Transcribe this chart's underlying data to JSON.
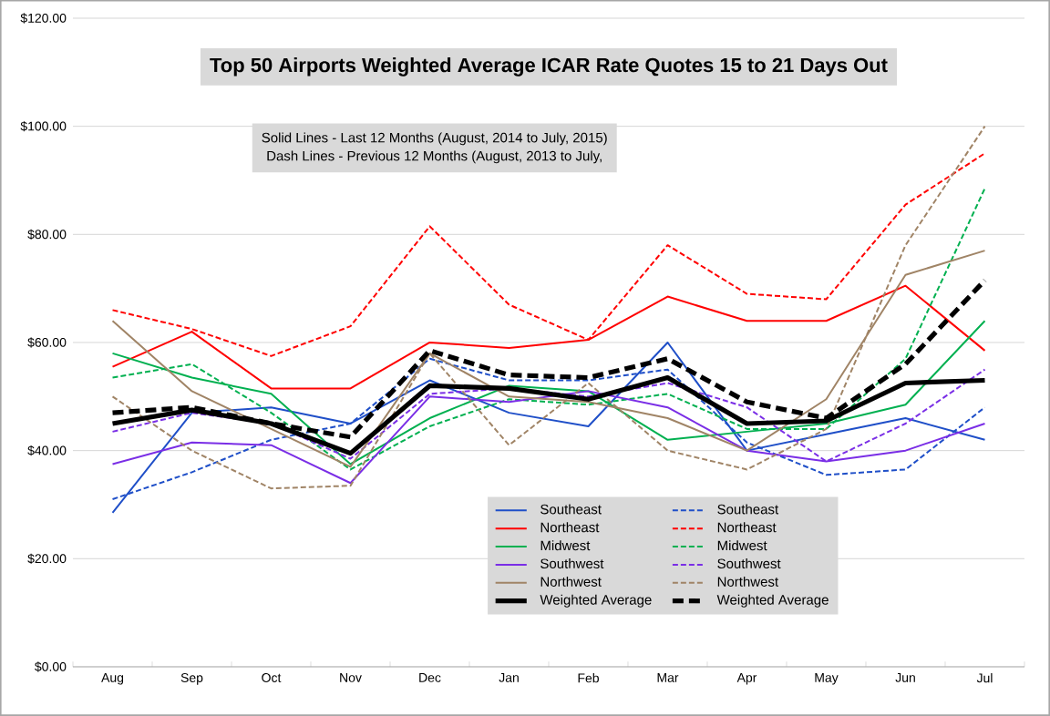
{
  "chart_data": {
    "type": "line",
    "title": "Top 50 Airports Weighted Average ICAR Rate Quotes 15 to 21 Days Out",
    "annotations": [
      "Solid Lines - Last 12 Months  (August, 2014 to July, 2015)",
      "Dash Lines - Previous 12 Months (August, 2013 to July,"
    ],
    "categories": [
      "Aug",
      "Sep",
      "Oct",
      "Nov",
      "Dec",
      "Jan",
      "Feb",
      "Mar",
      "Apr",
      "May",
      "Jun",
      "Jul"
    ],
    "ylim": [
      0,
      120
    ],
    "yticks": [
      {
        "value": 0,
        "label": "$0.00"
      },
      {
        "value": 20,
        "label": "$20.00"
      },
      {
        "value": 40,
        "label": "$40.00"
      },
      {
        "value": 60,
        "label": "$60.00"
      },
      {
        "value": 80,
        "label": "$80.00"
      },
      {
        "value": 100,
        "label": "$100.00"
      },
      {
        "value": 120,
        "label": "$120.00"
      }
    ],
    "grid": "y",
    "legend": "bottom",
    "marker": "none",
    "series": [
      {
        "name": "Southeast",
        "color": "#1f4fc8",
        "line_style": "solid",
        "values": [
          28.5,
          47,
          48,
          45,
          53,
          47,
          44.5,
          60,
          40,
          43,
          46,
          42
        ]
      },
      {
        "name": "Southeast",
        "color": "#1f4fc8",
        "line_style": "dashed",
        "values": [
          31,
          36,
          42,
          45,
          57,
          53,
          53,
          55,
          41.5,
          35.5,
          36.5,
          48
        ]
      },
      {
        "name": "Northeast",
        "color": "#ff0000",
        "line_style": "solid",
        "values": [
          55.5,
          62,
          51.5,
          51.5,
          60,
          59,
          60.5,
          68.5,
          64,
          64,
          70.5,
          58.5
        ]
      },
      {
        "name": "Northeast",
        "color": "#ff0000",
        "line_style": "dashed",
        "values": [
          66,
          62.5,
          57.5,
          63,
          81.5,
          67,
          60.5,
          78,
          69,
          68,
          85.5,
          95
        ]
      },
      {
        "name": "Midwest",
        "color": "#00b050",
        "line_style": "solid",
        "values": [
          58,
          53.5,
          50.5,
          37.5,
          46,
          52,
          51,
          42,
          43.5,
          45,
          48.5,
          64
        ]
      },
      {
        "name": "Midwest",
        "color": "#00b050",
        "line_style": "dashed",
        "values": [
          53.5,
          56,
          47,
          36.5,
          44.5,
          49.5,
          48.5,
          50.5,
          44,
          44,
          57,
          88.5
        ]
      },
      {
        "name": "Southwest",
        "color": "#7a2ee6",
        "line_style": "solid",
        "values": [
          37.5,
          41.5,
          41,
          34,
          50,
          49,
          51,
          48,
          40,
          38,
          40,
          45
        ]
      },
      {
        "name": "Southwest",
        "color": "#7a2ee6",
        "line_style": "dashed",
        "values": [
          43.5,
          47,
          45,
          38.5,
          50.5,
          51.5,
          50,
          52.5,
          48,
          38,
          45,
          55
        ]
      },
      {
        "name": "Northwest",
        "color": "#a08466",
        "line_style": "solid",
        "values": [
          64,
          51,
          44,
          37,
          58,
          50,
          49,
          46,
          40,
          49.5,
          72.5,
          77
        ]
      },
      {
        "name": "Northwest",
        "color": "#a08466",
        "line_style": "dashed",
        "values": [
          50,
          40,
          33,
          33.5,
          58,
          41,
          52.5,
          40,
          36.5,
          44,
          78,
          100
        ]
      },
      {
        "name": "Weighted Average",
        "color": "#000000",
        "line_style": "solid",
        "values": [
          45,
          47.5,
          45,
          39.5,
          52,
          51.5,
          49.5,
          53.5,
          45,
          45.5,
          52.5,
          53
        ]
      },
      {
        "name": "Weighted Average",
        "color": "#000000",
        "line_style": "dashed",
        "values": [
          47,
          48,
          45,
          42.5,
          58.5,
          54,
          53.5,
          57,
          49,
          46,
          56,
          71.5
        ]
      }
    ]
  }
}
